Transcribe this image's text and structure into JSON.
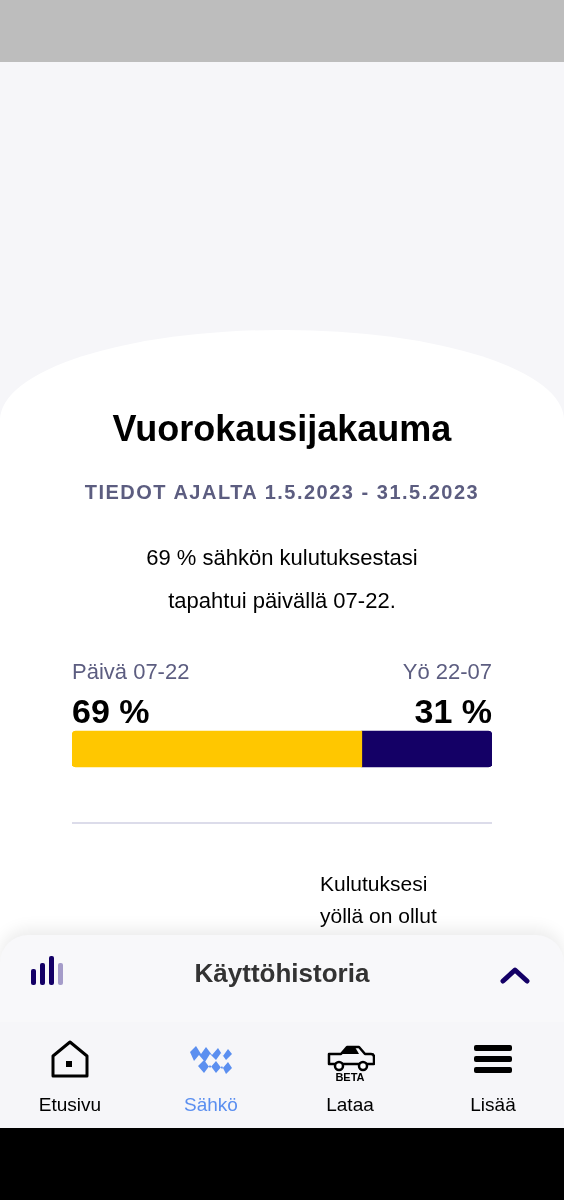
{
  "chart_data": {
    "type": "bar",
    "orientation": "horizontal",
    "stacked": true,
    "title": "Vuorokausijakauma",
    "subtitle": "TIEDOT AJALTA 1.5.2023 - 31.5.2023",
    "annotations": [
      "69 % sähkön kulutuksestasi tapahtui päivällä 07-22.",
      "Kulutuksesi yöllä on ollut",
      "Käyttöhistoria",
      "Etusivu",
      "Sähkö",
      "BETA",
      "Lataa",
      "Lisää"
    ],
    "categories": [
      null
    ],
    "xlim": [
      0,
      100
    ],
    "tick_labels": false,
    "series": [
      {
        "name": "Päivä 07-22",
        "color": "#ffc700",
        "values": [
          69
        ],
        "value_labels": [
          "69 %"
        ]
      },
      {
        "name": "Yö 22-07",
        "color": "#140066",
        "values": [
          31
        ],
        "value_labels": [
          "31 %"
        ]
      }
    ]
  }
}
